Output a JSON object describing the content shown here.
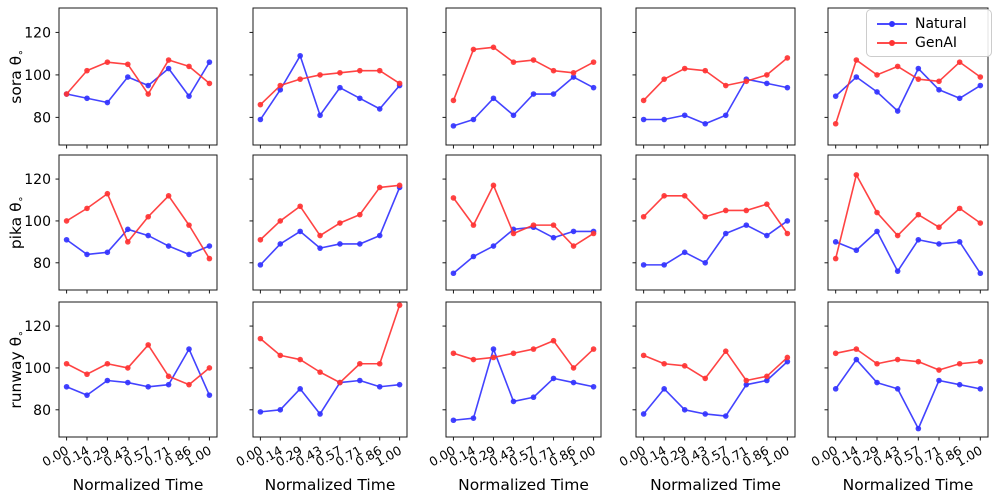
{
  "chart_data": {
    "type": "line",
    "xlabel": "Normalized Time",
    "x_tick_labels": [
      "0.00",
      "0.14",
      "0.29",
      "0.43",
      "0.57",
      "0.71",
      "0.86",
      "1.00"
    ],
    "yticks": [
      80,
      100,
      120
    ],
    "ylim": [
      67,
      131.5
    ],
    "grid": false,
    "legend": [
      {
        "label": "Natural",
        "color": "#3333ff"
      },
      {
        "label": "GenAI",
        "color": "#ff3333"
      }
    ],
    "rows": [
      {
        "ylabel": "sora θ∘",
        "panels": [
          {
            "natural": [
              91,
              89,
              87,
              99,
              95,
              103,
              90,
              106
            ],
            "genai": [
              91,
              102,
              106,
              105,
              91,
              107,
              104,
              96
            ]
          },
          {
            "natural": [
              79,
              93,
              109,
              81,
              94,
              89,
              84,
              95
            ],
            "genai": [
              86,
              95,
              98,
              100,
              101,
              102,
              102,
              96
            ]
          },
          {
            "natural": [
              76,
              79,
              89,
              81,
              91,
              91,
              99,
              94
            ],
            "genai": [
              88,
              112,
              113,
              106,
              107,
              102,
              101,
              106
            ]
          },
          {
            "natural": [
              79,
              79,
              81,
              77,
              81,
              98,
              96,
              94
            ],
            "genai": [
              88,
              98,
              103,
              102,
              95,
              97,
              100,
              108
            ]
          },
          {
            "natural": [
              90,
              99,
              92,
              83,
              103,
              93,
              89,
              95
            ],
            "genai": [
              77,
              107,
              100,
              104,
              98,
              97,
              106,
              99
            ]
          }
        ]
      },
      {
        "ylabel": "pika θ∘",
        "panels": [
          {
            "natural": [
              91,
              84,
              85,
              96,
              93,
              88,
              84,
              88
            ],
            "genai": [
              100,
              106,
              113,
              90,
              102,
              112,
              98,
              82
            ]
          },
          {
            "natural": [
              79,
              89,
              95,
              87,
              89,
              89,
              93,
              116
            ],
            "genai": [
              91,
              100,
              107,
              93,
              99,
              103,
              116,
              117
            ]
          },
          {
            "natural": [
              75,
              83,
              88,
              96,
              97,
              92,
              95,
              95
            ],
            "genai": [
              111,
              98,
              117,
              94,
              98,
              98,
              88,
              94
            ]
          },
          {
            "natural": [
              79,
              79,
              85,
              80,
              94,
              98,
              93,
              100
            ],
            "genai": [
              102,
              112,
              112,
              102,
              105,
              105,
              108,
              94
            ]
          },
          {
            "natural": [
              90,
              86,
              95,
              76,
              91,
              89,
              90,
              75
            ],
            "genai": [
              82,
              122,
              104,
              93,
              103,
              97,
              106,
              99
            ]
          }
        ]
      },
      {
        "ylabel": "runway θ∘",
        "panels": [
          {
            "natural": [
              91,
              87,
              94,
              93,
              91,
              92,
              109,
              87
            ],
            "genai": [
              102,
              97,
              102,
              100,
              111,
              96,
              92,
              100
            ]
          },
          {
            "natural": [
              79,
              80,
              90,
              78,
              93,
              94,
              91,
              92
            ],
            "genai": [
              114,
              106,
              104,
              98,
              93,
              102,
              102,
              130
            ]
          },
          {
            "natural": [
              75,
              76,
              109,
              84,
              86,
              95,
              93,
              91
            ],
            "genai": [
              107,
              104,
              105,
              107,
              109,
              113,
              100,
              109
            ]
          },
          {
            "natural": [
              78,
              90,
              80,
              78,
              77,
              92,
              94,
              103
            ],
            "genai": [
              106,
              102,
              101,
              95,
              108,
              94,
              96,
              105
            ]
          },
          {
            "natural": [
              90,
              104,
              93,
              90,
              71,
              94,
              92,
              90
            ],
            "genai": [
              107,
              109,
              102,
              104,
              103,
              99,
              102,
              103
            ]
          }
        ]
      }
    ]
  }
}
